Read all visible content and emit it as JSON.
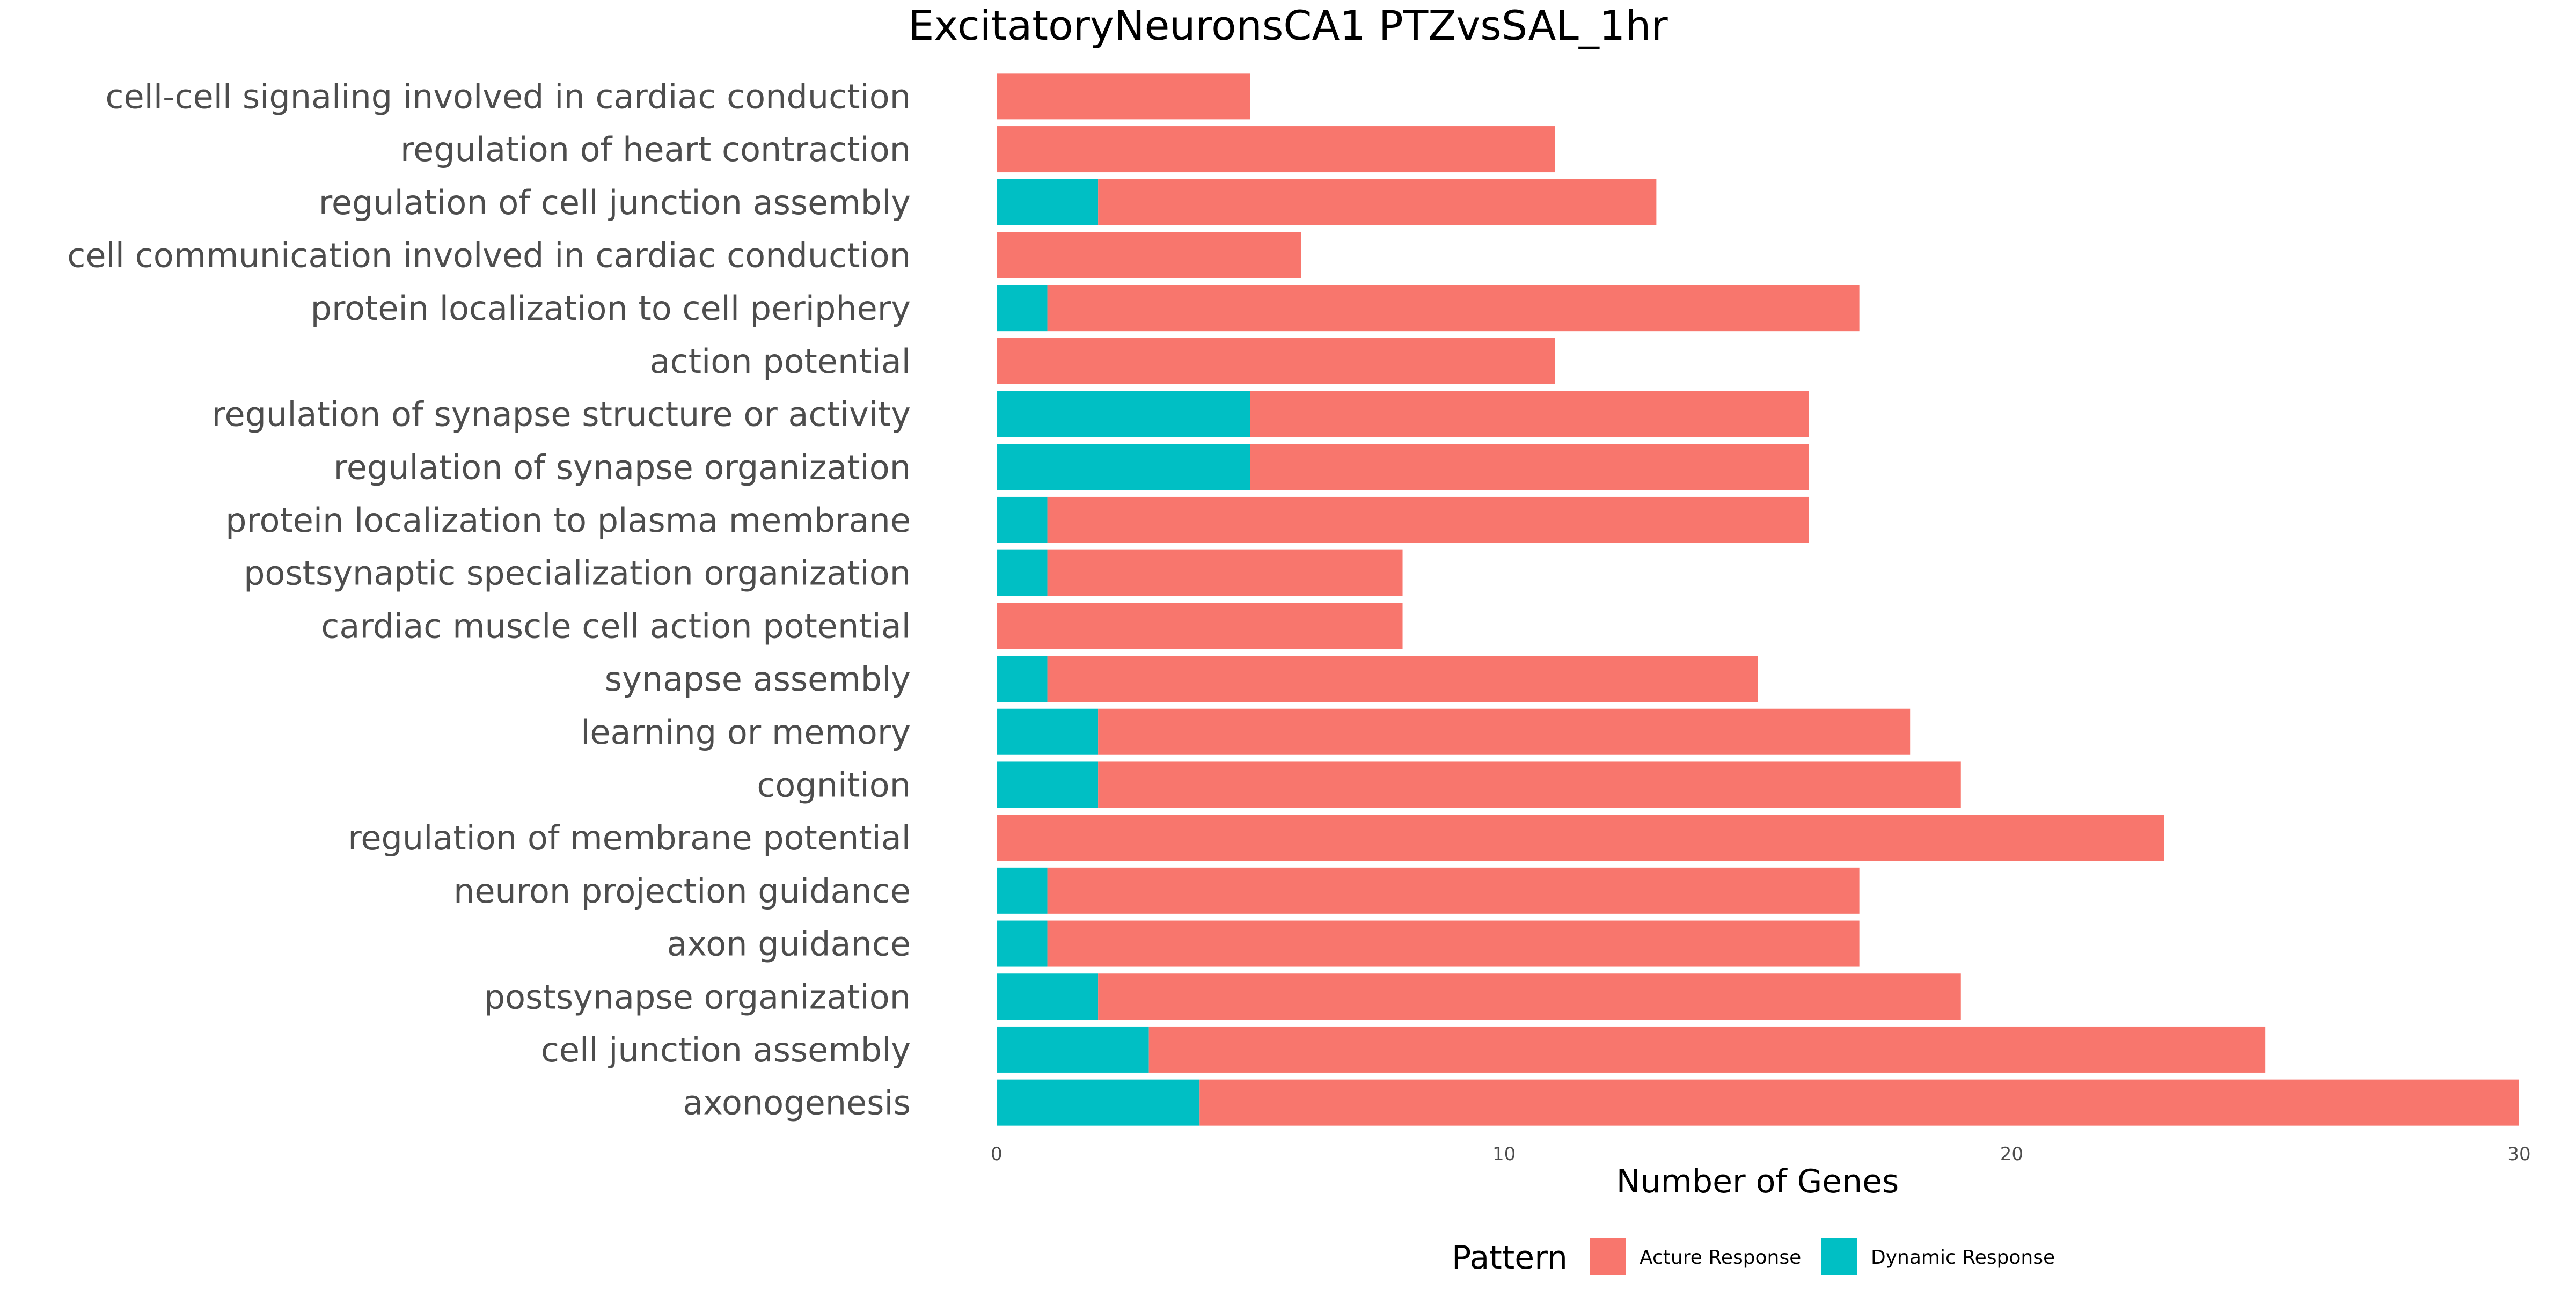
{
  "chart_data": {
    "type": "bar",
    "orientation": "horizontal",
    "stacked": true,
    "title": "ExcitatoryNeuronsCA1 PTZvsSAL_1hr",
    "xlabel": "Number of Genes",
    "ylabel": "",
    "xlim": [
      0,
      30
    ],
    "x_ticks": [
      "0",
      "10",
      "20",
      "30"
    ],
    "grid": false,
    "legend": {
      "title": "Pattern",
      "position": "bottom"
    },
    "categories": [
      "cell-cell signaling involved in cardiac conduction",
      "regulation of heart contraction",
      "regulation of cell junction assembly",
      "cell communication involved in cardiac conduction",
      "protein localization to cell periphery",
      "action potential",
      "regulation of synapse structure or activity",
      "regulation of synapse organization",
      "protein localization to plasma membrane",
      "postsynaptic specialization organization",
      "cardiac muscle cell action potential",
      "synapse assembly",
      "learning or memory",
      "cognition",
      "regulation of membrane potential",
      "neuron projection guidance",
      "axon guidance",
      "postsynapse organization",
      "cell junction assembly",
      "axonogenesis"
    ],
    "series": [
      {
        "name": "Dynamic Response",
        "color": "#00BFC4",
        "values": [
          0,
          0,
          2,
          0,
          1,
          0,
          5,
          5,
          1,
          1,
          0,
          1,
          2,
          2,
          0,
          1,
          1,
          2,
          3,
          4
        ]
      },
      {
        "name": "Acture Response",
        "color": "#F8766D",
        "values": [
          5,
          11,
          11,
          6,
          16,
          11,
          11,
          11,
          15,
          7,
          8,
          14,
          16,
          17,
          23,
          16,
          16,
          17,
          22,
          26
        ]
      }
    ],
    "legend_order": [
      "Acture Response",
      "Dynamic Response"
    ]
  }
}
